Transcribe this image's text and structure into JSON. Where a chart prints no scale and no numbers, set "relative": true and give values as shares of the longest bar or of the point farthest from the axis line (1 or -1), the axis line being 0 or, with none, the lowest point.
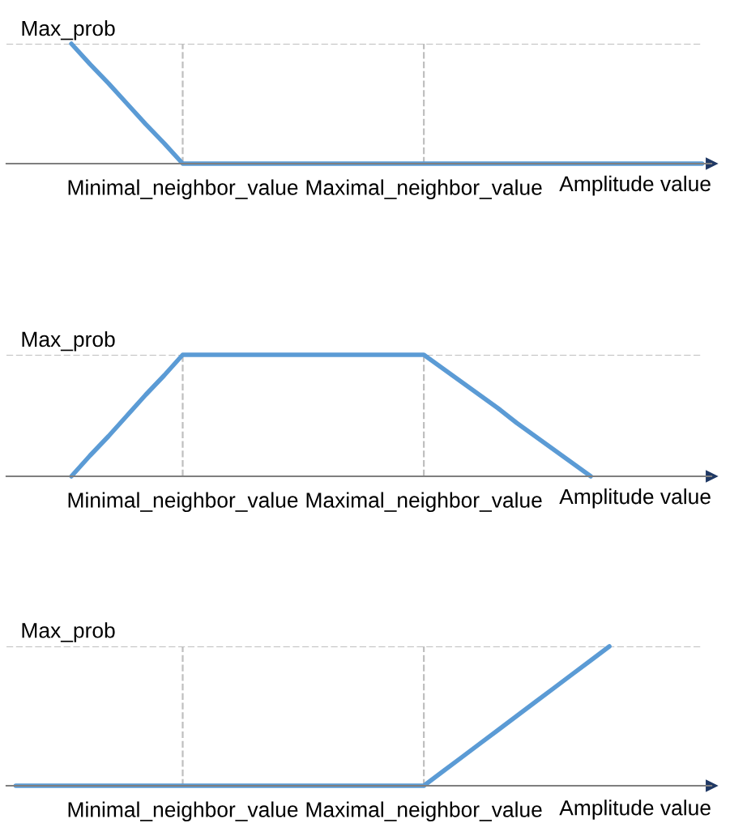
{
  "chart_data": [
    {
      "type": "line",
      "xlabel": "Amplitude value",
      "grid": "x",
      "relative": true,
      "annotations": [
        "Max_prob"
      ],
      "categories": [
        null,
        null,
        null,
        null,
        null,
        null,
        null,
        null,
        null,
        "Minimal_neighbor_value",
        null,
        null,
        null,
        null,
        null,
        null,
        null,
        null,
        null,
        null,
        null,
        null,
        "Maximal_neighbor_value",
        null,
        null,
        null,
        null,
        null,
        null,
        null,
        null,
        null,
        null,
        null,
        null,
        null,
        null,
        null
      ],
      "series": [
        {
          "color": "#5b9bd5",
          "values": [
            null,
            null,
            null,
            1,
            0.83,
            0.67,
            0.5,
            0.33,
            0.17,
            0,
            0,
            0,
            0,
            0,
            0,
            0,
            0,
            0,
            0,
            0,
            0,
            0,
            0,
            0,
            0,
            0,
            0,
            0,
            0,
            0,
            0,
            0,
            0,
            0,
            0,
            0,
            0,
            0
          ]
        }
      ]
    },
    {
      "type": "line",
      "xlabel": "Amplitude value",
      "grid": "x",
      "relative": true,
      "annotations": [
        "Max_prob"
      ],
      "categories": [
        null,
        null,
        null,
        null,
        null,
        null,
        null,
        null,
        null,
        "Minimal_neighbor_value",
        null,
        null,
        null,
        null,
        null,
        null,
        null,
        null,
        null,
        null,
        null,
        null,
        "Maximal_neighbor_value",
        null,
        null,
        null,
        null,
        null,
        null,
        null,
        null,
        null,
        null,
        null,
        null,
        null,
        null,
        null
      ],
      "series": [
        {
          "color": "#5b9bd5",
          "values": [
            null,
            null,
            null,
            0,
            0.17,
            0.33,
            0.5,
            0.67,
            0.83,
            1,
            1,
            1,
            1,
            1,
            1,
            1,
            1,
            1,
            1,
            1,
            1,
            1,
            1,
            0.89,
            0.78,
            0.67,
            0.56,
            0.44,
            0.33,
            0.22,
            0.11,
            0,
            null,
            null,
            null,
            null,
            null,
            null
          ]
        }
      ]
    },
    {
      "type": "line",
      "xlabel": "Amplitude value",
      "grid": "x",
      "relative": true,
      "annotations": [
        "Max_prob"
      ],
      "categories": [
        null,
        null,
        null,
        null,
        null,
        null,
        null,
        null,
        null,
        "Minimal_neighbor_value",
        null,
        null,
        null,
        null,
        null,
        null,
        null,
        null,
        null,
        null,
        null,
        null,
        "Maximal_neighbor_value",
        null,
        null,
        null,
        null,
        null,
        null,
        null,
        null,
        null,
        null,
        null,
        null,
        null,
        null,
        null
      ],
      "series": [
        {
          "color": "#5b9bd5",
          "values": [
            0,
            0,
            0,
            0,
            0,
            0,
            0,
            0,
            0,
            0,
            0,
            0,
            0,
            0,
            0,
            0,
            0,
            0,
            0,
            0,
            0,
            0,
            0,
            0.1,
            0.2,
            0.3,
            0.4,
            0.5,
            0.6,
            0.7,
            0.8,
            0.9,
            1,
            null,
            null,
            null,
            null,
            null
          ]
        }
      ]
    }
  ]
}
